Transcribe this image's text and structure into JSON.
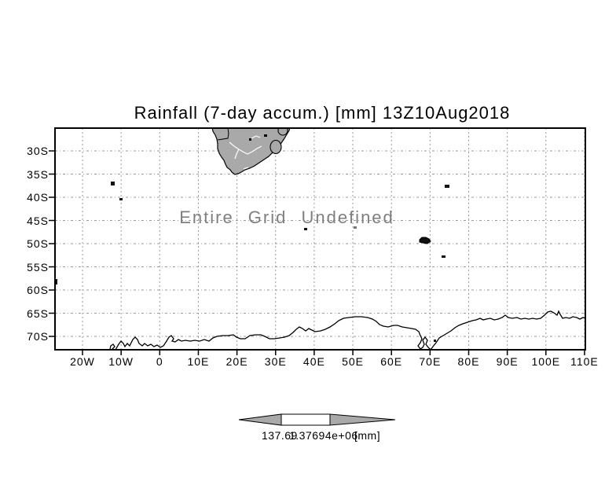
{
  "title": "Rainfall (7-day accum.) [mm] 13Z10Aug2018",
  "overlay_message": "Entire Grid Undefined",
  "axes": {
    "lat_ticks": [
      "30S",
      "35S",
      "40S",
      "45S",
      "50S",
      "55S",
      "60S",
      "65S",
      "70S"
    ],
    "lon_ticks": [
      "20W",
      "10W",
      "0",
      "10E",
      "20E",
      "30E",
      "40E",
      "50E",
      "60E",
      "70E",
      "80E",
      "90E",
      "100E",
      "110E"
    ]
  },
  "colorbar": {
    "left_value": "137.69",
    "overlap_value": "1.37694e+06",
    "unit": "[mm]"
  },
  "colors": {
    "land_fill": "#a9a9a9",
    "grid_line": "#9a9a9a",
    "coast_line": "#000000",
    "message_text": "#7f7f7f",
    "colorbar_arrow_fill": "#a9a9a9",
    "colorbar_box_fill": "#ffffff"
  },
  "chart_data": {
    "type": "heatmap",
    "title": "Rainfall (7-day accum.) [mm] 13Z10Aug2018",
    "variable": "Rainfall (7-day accum.)",
    "unit": "mm",
    "valid_time": "13Z10Aug2018",
    "x_tick_labels": [
      "20W",
      "10W",
      "0",
      "10E",
      "20E",
      "30E",
      "40E",
      "50E",
      "60E",
      "70E",
      "80E",
      "90E",
      "100E",
      "110E"
    ],
    "y_tick_labels": [
      "30S",
      "35S",
      "40S",
      "45S",
      "50S",
      "55S",
      "60S",
      "65S",
      "70S"
    ],
    "lon_range_deg": [
      -27.5,
      110.5
    ],
    "lat_range_deg": [
      -73,
      -25
    ],
    "grid": true,
    "values": [],
    "annotation": "Entire Grid Undefined",
    "colorbar_labels": [
      "137.69",
      "1.37694e+06"
    ],
    "colorbar_unit": "[mm]",
    "basemap_features": [
      "southern Africa landmass",
      "Antarctic coastline",
      "sub-Antarctic islands"
    ]
  }
}
